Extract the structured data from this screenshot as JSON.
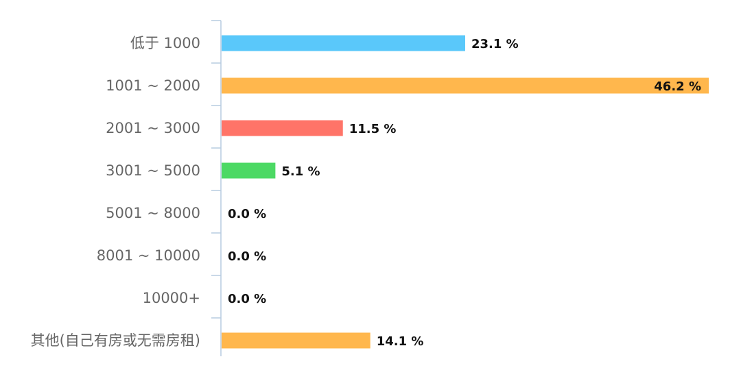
{
  "chart_data": {
    "type": "bar",
    "orientation": "horizontal",
    "categories": [
      "低于 1000",
      "1001 ~ 2000",
      "2001 ~ 3000",
      "3001 ~ 5000",
      "5001 ~ 8000",
      "8001 ~ 10000",
      "10000+",
      "其他(自己有房或无需房租)"
    ],
    "values": [
      23.1,
      46.2,
      11.5,
      5.1,
      0.0,
      0.0,
      0.0,
      14.1
    ],
    "value_labels": [
      "23.1 %",
      "46.2 %",
      "11.5 %",
      "5.1 %",
      "0.0 %",
      "0.0 %",
      "0.0 %",
      "14.1 %"
    ],
    "bar_colors": [
      "#5ac8fa",
      "#ffb74d",
      "#ff7468",
      "#4cd964",
      "#5ac8fa",
      "#5ac8fa",
      "#5ac8fa",
      "#ffb74d"
    ],
    "axis_color": "#b7cce0",
    "xlim": [
      0,
      46.2
    ],
    "grid": false,
    "title": "",
    "xlabel": "",
    "ylabel": ""
  }
}
